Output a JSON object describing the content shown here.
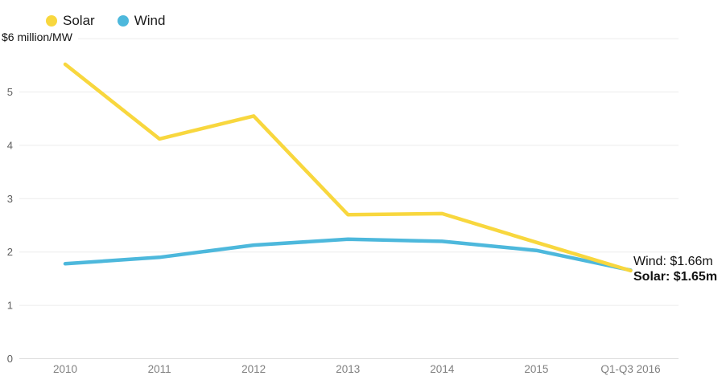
{
  "chart_data": {
    "type": "line",
    "title": "",
    "unit_label": "$6 million/MW",
    "categories": [
      "2010",
      "2011",
      "2012",
      "2013",
      "2014",
      "2015",
      "Q1-Q3 2016"
    ],
    "series": [
      {
        "name": "Solar",
        "color": "#f8d73e",
        "values": [
          5.52,
          4.12,
          4.55,
          2.7,
          2.72,
          2.18,
          1.65
        ]
      },
      {
        "name": "Wind",
        "color": "#4db8dc",
        "values": [
          1.78,
          1.9,
          2.13,
          2.24,
          2.2,
          2.03,
          1.66
        ]
      }
    ],
    "ylim": [
      0,
      6
    ],
    "yticks": [
      0,
      1,
      2,
      3,
      4,
      5
    ],
    "grid": true,
    "legend_position": "top-left",
    "annotations": [
      {
        "text": "Wind: $1.66m",
        "bold": false
      },
      {
        "text": "Solar: $1.65m",
        "bold": true
      }
    ]
  }
}
